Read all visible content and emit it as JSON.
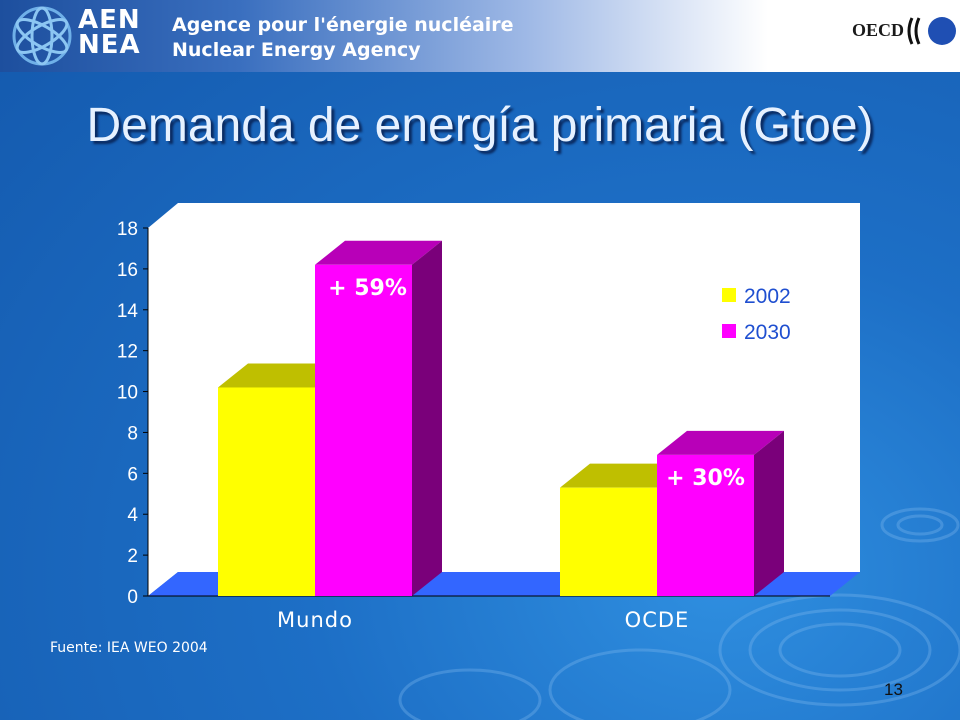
{
  "header": {
    "logo_text": "AEN\nNEA",
    "logo_line1": "AEN",
    "logo_line2": "NEA",
    "agency_fr": "Agence pour l'énergie nucléaire",
    "agency_en": "Nuclear Energy Agency",
    "oecd": "OECD"
  },
  "title": "Demanda de energía primaria (Gtoe)",
  "source": "Fuente: IEA WEO 2004",
  "page_number": "13",
  "colors": {
    "series_2002": "#ffff00",
    "series_2030": "#ff00ff",
    "floor": "#3366ff"
  },
  "chart_data": {
    "type": "bar",
    "categories": [
      "Mundo",
      "OCDE"
    ],
    "series": [
      {
        "name": "2002",
        "values": [
          10.2,
          5.3
        ]
      },
      {
        "name": "2030",
        "values": [
          16.2,
          6.9
        ]
      }
    ],
    "annotations": [
      "+ 59%",
      "+ 30%"
    ],
    "ylim": [
      0,
      18
    ],
    "yticks": [
      "0",
      "2",
      "4",
      "6",
      "8",
      "10",
      "12",
      "14",
      "16",
      "18"
    ],
    "legend_position": "right",
    "grid": false,
    "style": "3d"
  }
}
